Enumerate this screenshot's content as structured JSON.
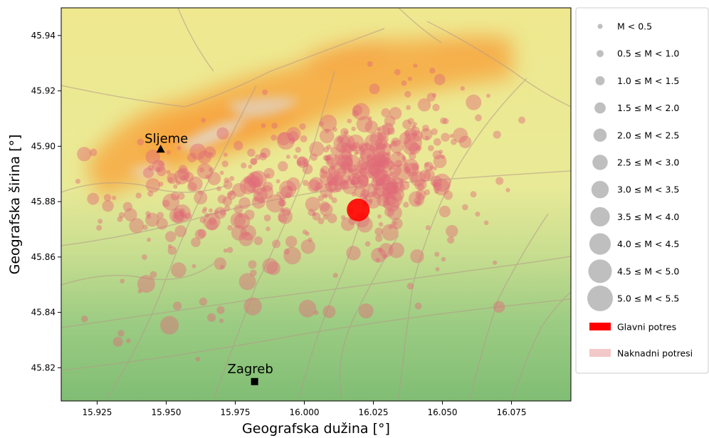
{
  "chart_data": {
    "type": "scatter",
    "xlabel": "Geografska dužina [°]",
    "ylabel": "Geografska širina [°]",
    "xlim": [
      15.912,
      15.9965
    ],
    "ylim": [
      45.808,
      45.95
    ],
    "xlim_full": [
      15.912,
      16.0965
    ],
    "xticks": [
      "15.925",
      "15.950",
      "15.975",
      "16.000",
      "16.025",
      "16.050",
      "16.075"
    ],
    "xtick_values": [
      15.925,
      15.95,
      15.975,
      16.0,
      16.025,
      16.05,
      16.075
    ],
    "yticks": [
      "45.82",
      "45.84",
      "45.86",
      "45.88",
      "45.90",
      "45.92",
      "45.94"
    ],
    "ytick_values": [
      45.82,
      45.84,
      45.86,
      45.88,
      45.9,
      45.92,
      45.94
    ],
    "cities": [
      {
        "name": "Sljeme",
        "lon": 15.948,
        "lat": 45.899,
        "marker": "triangle"
      },
      {
        "name": "Zagreb",
        "lon": 15.982,
        "lat": 45.815,
        "marker": "square"
      }
    ],
    "main_shock": {
      "lon": 16.0195,
      "lat": 45.877,
      "magnitude": 5.4,
      "color": "#ff0000"
    },
    "aftershock_color": "#e06a78",
    "legend_title_entries": [
      "M < 0.5",
      "0.5 ≤ M < 1.0",
      "1.0 ≤ M < 1.5",
      "1.5 ≤ M < 2.0",
      "2.0 ≤ M < 2.5",
      "2.5 ≤ M < 3.0",
      "3.0 ≤ M < 3.5",
      "3.5 ≤ M < 4.0",
      "4.0 ≤ M < 4.5",
      "4.5 ≤ M < 5.0",
      "5.0 ≤ M < 5.5"
    ],
    "legend_patches": [
      {
        "label": "Glavni potres",
        "color": "#ff0000"
      },
      {
        "label": "Naknadni potresi",
        "color": "#f2c8c8"
      }
    ],
    "legend_placement": "right, outside plot",
    "grid": false
  },
  "colors": {
    "lowland": "#86c07a",
    "mid": "#f3ef95",
    "high": "#f4b24f",
    "peak": "#d8d8d8",
    "roads": "#b49a88",
    "legend_marker": "#bfbfbf"
  }
}
